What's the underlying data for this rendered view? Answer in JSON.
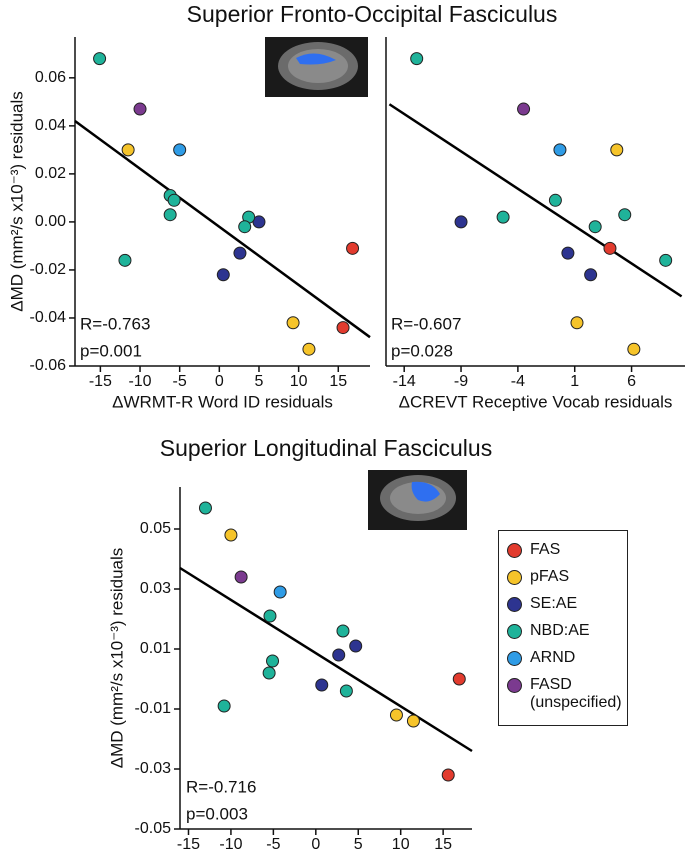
{
  "chart_data": [
    {
      "type": "scatter",
      "title": "Superior Fronto-Occipital Fasciculus",
      "xlabel": "ΔWRMT-R Word ID residuals",
      "ylabel": "ΔMD (mm²/s x10⁻³) residuals",
      "xlim": [
        -18.2,
        19
      ],
      "ylim": [
        -0.06,
        0.077
      ],
      "xticks": [
        -15,
        -10,
        -5,
        0,
        5,
        10,
        15
      ],
      "yticks": [
        -0.06,
        -0.04,
        -0.02,
        {
          "value": 0,
          "label": "0.00"
        },
        0.02,
        0.04,
        0.06
      ],
      "annotations": [
        "R=-0.763",
        "p=0.001"
      ],
      "fit": {
        "x": [
          -18.2,
          19
        ],
        "y": [
          0.042,
          -0.048
        ]
      },
      "series": [
        {
          "name": "FAS",
          "color": "#e23b2e",
          "x": [
            16.8,
            15.6
          ],
          "values": [
            -0.011,
            -0.044
          ]
        },
        {
          "name": "pFAS",
          "color": "#f6c42a",
          "x": [
            -11.5,
            9.3,
            11.3
          ],
          "values": [
            0.03,
            -0.042,
            -0.053
          ]
        },
        {
          "name": "SE:AE",
          "color": "#2d3490",
          "x": [
            5,
            2.6,
            0.5
          ],
          "values": [
            0.0,
            -0.013,
            -0.022
          ]
        },
        {
          "name": "NBD:AE",
          "color": "#1fb39a",
          "x": [
            -15.1,
            -6.2,
            -5.7,
            -6.2,
            -11.9,
            3.7,
            3.2
          ],
          "values": [
            0.068,
            0.011,
            0.009,
            0.003,
            -0.016,
            0.002,
            -0.002
          ]
        },
        {
          "name": "ARND",
          "color": "#2f9ce6",
          "x": [
            -5
          ],
          "values": [
            0.03
          ]
        },
        {
          "name": "FASD (unspecified)",
          "color": "#7b3a8f",
          "x": [
            -10
          ],
          "values": [
            0.047
          ]
        }
      ]
    },
    {
      "type": "scatter",
      "xlabel": "ΔCREVT Receptive Vocab residuals",
      "xlim": [
        -15.6,
        10.7
      ],
      "ylim": [
        -0.06,
        0.077
      ],
      "xticks": [
        -14,
        -9,
        -4,
        1,
        6
      ],
      "annotations": [
        "R=-0.607",
        "p=0.028"
      ],
      "fit": {
        "x": [
          -15.3,
          10.4
        ],
        "y": [
          0.049,
          -0.031
        ]
      },
      "series": [
        {
          "name": "FAS",
          "color": "#e23b2e",
          "x": [
            4.1
          ],
          "values": [
            -0.011
          ]
        },
        {
          "name": "pFAS",
          "color": "#f6c42a",
          "x": [
            4.7,
            1.2,
            6.2
          ],
          "values": [
            0.03,
            -0.042,
            -0.053
          ]
        },
        {
          "name": "SE:AE",
          "color": "#2d3490",
          "x": [
            -9,
            0.4,
            2.4
          ],
          "values": [
            0.0,
            -0.013,
            -0.022
          ]
        },
        {
          "name": "NBD:AE",
          "color": "#1fb39a",
          "x": [
            -12.9,
            -0.7,
            -5.3,
            5.4,
            2.8,
            9.0
          ],
          "values": [
            0.068,
            0.009,
            0.002,
            0.003,
            -0.002,
            -0.016
          ]
        },
        {
          "name": "ARND",
          "color": "#2f9ce6",
          "x": [
            -0.3
          ],
          "values": [
            0.03
          ]
        },
        {
          "name": "FASD (unspecified)",
          "color": "#7b3a8f",
          "x": [
            -3.5
          ],
          "values": [
            0.047
          ]
        }
      ]
    },
    {
      "type": "scatter",
      "title": "Superior Longitudinal Fasciculus",
      "xlabel": "ΔWRMT-R Word ID residuals",
      "ylabel": "ΔMD (mm²/s x10⁻³) residuals",
      "xlim": [
        -16,
        18.4
      ],
      "ylim": [
        -0.05,
        0.064
      ],
      "xticks": [
        -15,
        -10,
        -5,
        0,
        5,
        10,
        15
      ],
      "yticks": [
        -0.05,
        -0.03,
        -0.01,
        0.01,
        0.03,
        0.05
      ],
      "annotations": [
        "R=-0.716",
        "p=0.003"
      ],
      "fit": {
        "x": [
          -16,
          18.4
        ],
        "y": [
          0.037,
          -0.024
        ]
      },
      "legend": "right",
      "series": [
        {
          "name": "FAS",
          "color": "#e23b2e",
          "x": [
            16.9,
            15.6
          ],
          "values": [
            0.0,
            -0.032
          ]
        },
        {
          "name": "pFAS",
          "color": "#f6c42a",
          "x": [
            -10,
            9.5,
            11.5
          ],
          "values": [
            0.048,
            -0.012,
            -0.014
          ]
        },
        {
          "name": "SE:AE",
          "color": "#2d3490",
          "x": [
            4.7,
            2.7,
            0.7
          ],
          "values": [
            0.011,
            0.008,
            -0.002
          ]
        },
        {
          "name": "NBD:AE",
          "color": "#1fb39a",
          "x": [
            -13,
            -5.4,
            -5.1,
            -5.5,
            -10.8,
            3.2,
            3.6
          ],
          "values": [
            0.057,
            0.021,
            0.006,
            0.002,
            -0.009,
            0.016,
            -0.004
          ]
        },
        {
          "name": "ARND",
          "color": "#2f9ce6",
          "x": [
            -4.2
          ],
          "values": [
            0.029
          ]
        },
        {
          "name": "FASD (unspecified)",
          "color": "#7b3a8f",
          "x": [
            -8.8
          ],
          "values": [
            0.034
          ]
        }
      ]
    }
  ]
}
